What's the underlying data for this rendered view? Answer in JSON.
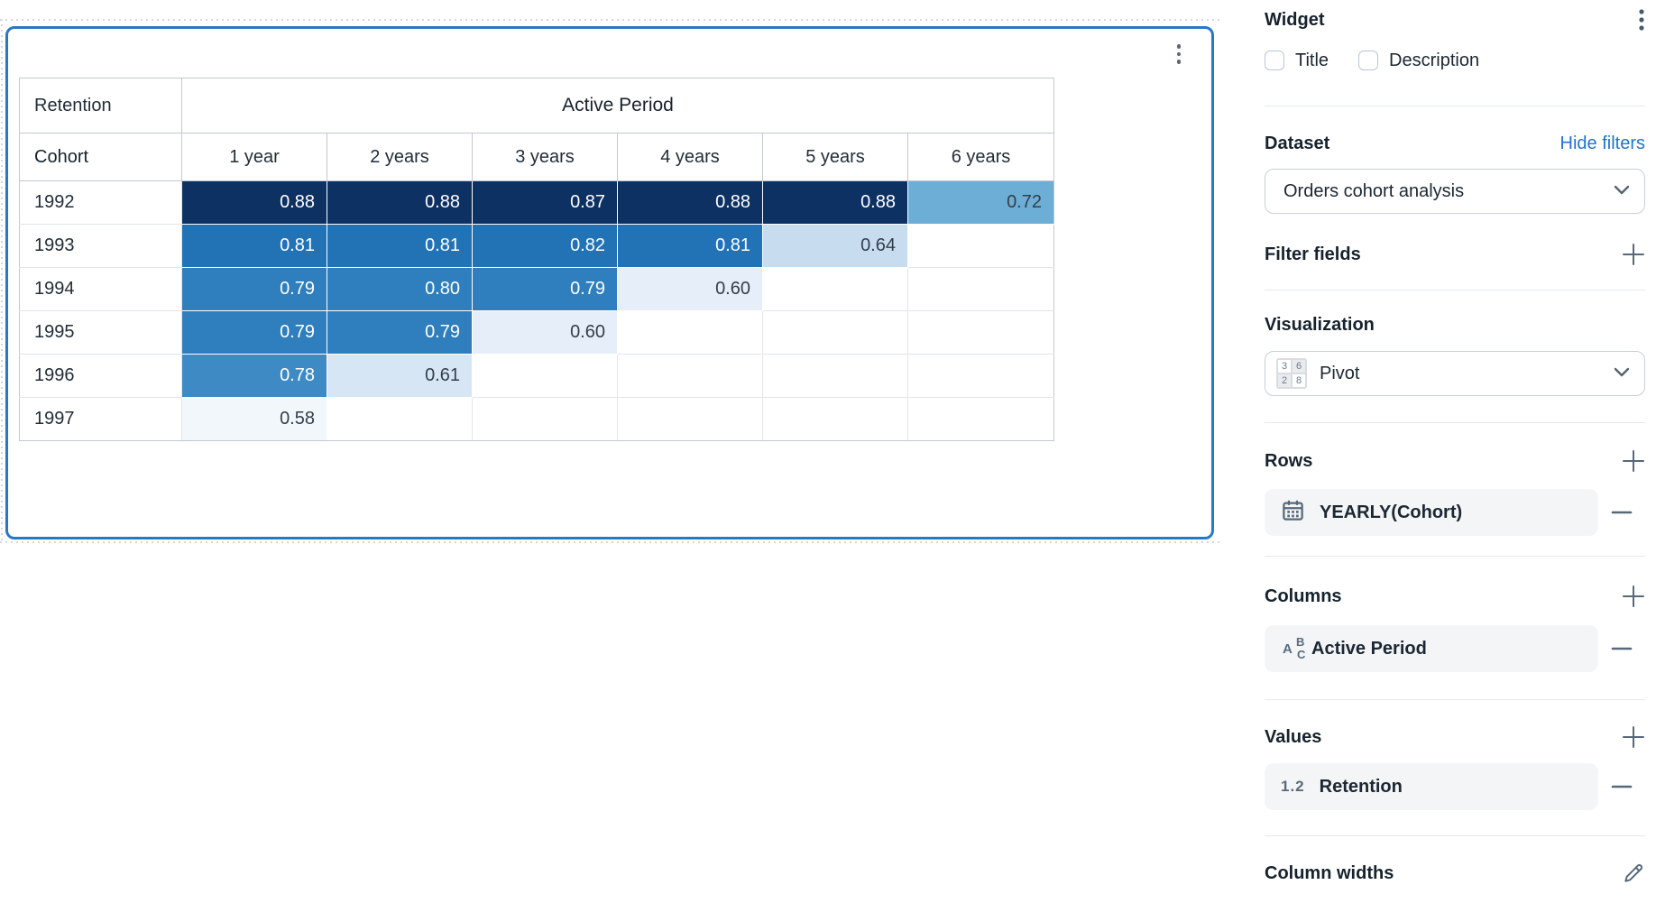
{
  "widget_card": {
    "menu_icon": "kebab-menu"
  },
  "pivot": {
    "corner_label": "Retention",
    "group_header": "Active Period",
    "row_dim_label": "Cohort",
    "col_headers": [
      "1 year",
      "2 years",
      "3 years",
      "4 years",
      "5 years",
      "6 years"
    ],
    "cohorts": [
      "1992",
      "1993",
      "1994",
      "1995",
      "1996",
      "1997"
    ]
  },
  "chart_data": {
    "type": "heatmap",
    "title": "Retention",
    "xlabel": "Active Period",
    "ylabel": "Cohort",
    "x": [
      "1 year",
      "2 years",
      "3 years",
      "4 years",
      "5 years",
      "6 years"
    ],
    "y": [
      "1992",
      "1993",
      "1994",
      "1995",
      "1996",
      "1997"
    ],
    "values": [
      [
        0.88,
        0.88,
        0.87,
        0.88,
        0.88,
        0.72
      ],
      [
        0.81,
        0.81,
        0.82,
        0.81,
        0.64,
        null
      ],
      [
        0.79,
        0.8,
        0.79,
        0.6,
        null,
        null
      ],
      [
        0.79,
        0.79,
        0.6,
        null,
        null,
        null
      ],
      [
        0.78,
        0.61,
        null,
        null,
        null,
        null
      ],
      [
        0.58,
        null,
        null,
        null,
        null,
        null
      ]
    ]
  },
  "palette": [
    {
      "min": 0.85,
      "bg": "#0d3163",
      "fg": "#ffffff"
    },
    {
      "min": 0.805,
      "bg": "#2272b6",
      "fg": "#ffffff"
    },
    {
      "min": 0.785,
      "bg": "#2f7ebd",
      "fg": "#ffffff"
    },
    {
      "min": 0.75,
      "bg": "#3d8ac4",
      "fg": "#ffffff"
    },
    {
      "min": 0.7,
      "bg": "#6caed6",
      "fg": "#333e49"
    },
    {
      "min": 0.63,
      "bg": "#c8dcef",
      "fg": "#333e49"
    },
    {
      "min": 0.605,
      "bg": "#d6e6f4",
      "fg": "#333e49"
    },
    {
      "min": 0.59,
      "bg": "#e6eff9",
      "fg": "#333e49"
    },
    {
      "min": 0.0,
      "bg": "#f2f7fc",
      "fg": "#333e49"
    }
  ],
  "panel": {
    "title": "Widget",
    "checkboxes": {
      "title_label": "Title",
      "description_label": "Description"
    },
    "dataset": {
      "heading": "Dataset",
      "link_label": "Hide filters",
      "selected": "Orders cohort analysis"
    },
    "filter_fields": {
      "heading": "Filter fields"
    },
    "visualization": {
      "heading": "Visualization",
      "selected": "Pivot"
    },
    "rows_section": {
      "heading": "Rows",
      "field": "YEARLY(Cohort)"
    },
    "columns_section": {
      "heading": "Columns",
      "field": "Active Period"
    },
    "values_section": {
      "heading": "Values",
      "badge": "1.2",
      "field": "Retention"
    },
    "column_widths": {
      "heading": "Column widths"
    },
    "viz_icon_digits": [
      "3",
      "6",
      "2",
      "8"
    ]
  },
  "colors": {
    "widget_border": "#2878c8",
    "link": "#2273cf",
    "scrollbar": "#3e4b5a",
    "icon": "#57687a"
  }
}
